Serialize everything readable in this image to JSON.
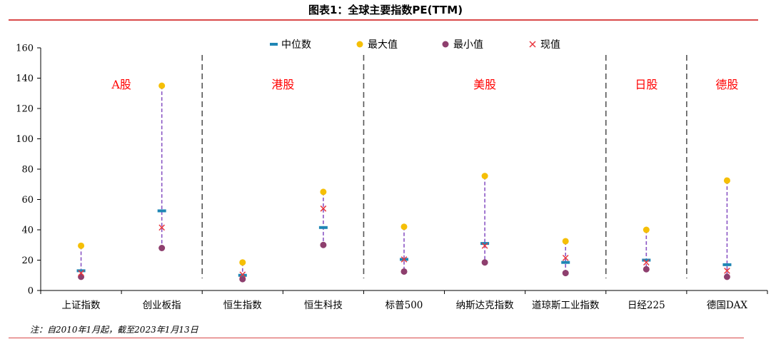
{
  "title": "图表1：全球主要指数PE(TTM)",
  "note": "注：自2010年1月起，截至2023年1月13日",
  "colors": {
    "median": "#1f86b5",
    "max": "#f5bf06",
    "min": "#8e3f6e",
    "current": "#e8373f",
    "range_line": "#8a55c4",
    "market_label": "#ff0000",
    "rule": "#d94a4a"
  },
  "chart_data": {
    "type": "scatter",
    "title": "图表1：全球主要指数PE(TTM)",
    "ylim": [
      0,
      160
    ],
    "yticks": [
      0,
      20,
      40,
      60,
      80,
      100,
      120,
      140,
      160
    ],
    "legend": [
      "中位数",
      "最大值",
      "最小值",
      "现值"
    ],
    "legend_position": "top",
    "categories": [
      "上证指数",
      "创业板指",
      "恒生指数",
      "恒生科技",
      "标普500",
      "纳斯达克指数",
      "道琼斯工业指数",
      "日经225",
      "德国DAX"
    ],
    "series": [
      {
        "name": "中位数",
        "marker": "dash",
        "values": [
          13,
          52.5,
          10,
          41.5,
          20.5,
          31,
          18.5,
          20,
          17
        ]
      },
      {
        "name": "最大值",
        "marker": "circle",
        "values": [
          29.5,
          135,
          18.5,
          65,
          42,
          75.5,
          32.5,
          40,
          72.5
        ]
      },
      {
        "name": "最小值",
        "marker": "circle",
        "values": [
          9,
          28,
          7.5,
          30,
          12.5,
          18.5,
          11.5,
          14,
          9
        ]
      },
      {
        "name": "现值",
        "marker": "x",
        "values": [
          11.5,
          41.5,
          10.5,
          54,
          20.5,
          29.5,
          21.5,
          18.5,
          13
        ]
      }
    ],
    "groups": [
      {
        "label": "A股",
        "categories": [
          "上证指数",
          "创业板指"
        ]
      },
      {
        "label": "港股",
        "categories": [
          "恒生指数",
          "恒生科技"
        ]
      },
      {
        "label": "美股",
        "categories": [
          "标普500",
          "纳斯达克指数",
          "道琼斯工业指数"
        ]
      },
      {
        "label": "日股",
        "categories": [
          "日经225"
        ]
      },
      {
        "label": "德股",
        "categories": [
          "德国DAX"
        ]
      }
    ]
  }
}
